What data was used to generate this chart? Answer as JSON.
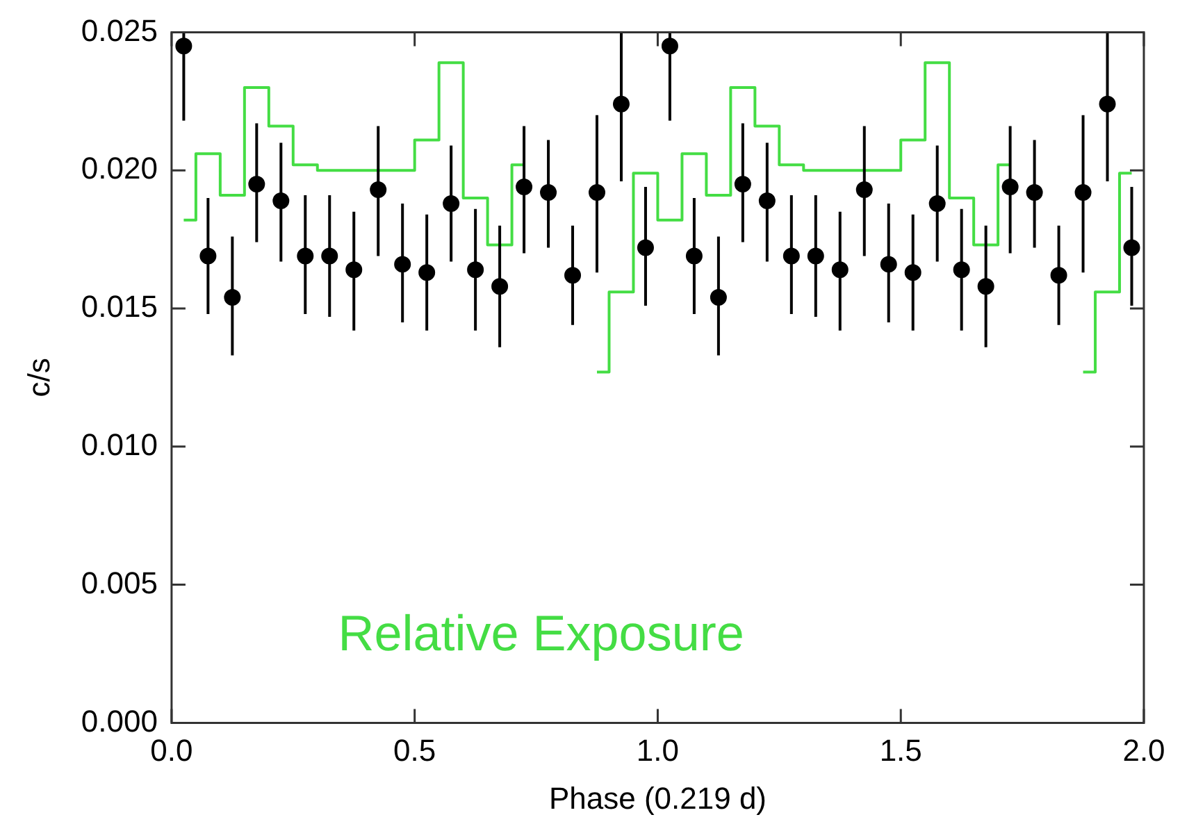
{
  "chart_data": {
    "type": "scatter",
    "xlabel": "Phase (0.219 d)",
    "ylabel": "c/s",
    "xlim": [
      0,
      2
    ],
    "ylim": [
      0,
      0.025
    ],
    "xticks": [
      {
        "value": 0,
        "label": "0.0"
      },
      {
        "value": 0.5,
        "label": "0.5"
      },
      {
        "value": 1,
        "label": "1.0"
      },
      {
        "value": 1.5,
        "label": "1.5"
      },
      {
        "value": 2,
        "label": "2.0"
      }
    ],
    "yticks": [
      {
        "value": 0,
        "label": "0.000"
      },
      {
        "value": 0.005,
        "label": "0.005"
      },
      {
        "value": 0.01,
        "label": "0.010"
      },
      {
        "value": 0.015,
        "label": "0.015"
      },
      {
        "value": 0.02,
        "label": "0.020"
      },
      {
        "value": 0.025,
        "label": "0.025"
      }
    ],
    "grid": false,
    "legend": false,
    "series": [
      {
        "color": "#000000",
        "marker": "circle",
        "x": [
          0.025,
          0.075,
          0.125,
          0.175,
          0.225,
          0.275,
          0.325,
          0.375,
          0.425,
          0.475,
          0.525,
          0.575,
          0.625,
          0.675,
          0.725,
          0.775,
          0.825,
          0.875,
          0.925,
          0.975,
          1.025,
          1.075,
          1.125,
          1.175,
          1.225,
          1.275,
          1.325,
          1.375,
          1.425,
          1.475,
          1.525,
          1.575,
          1.625,
          1.675,
          1.725,
          1.775,
          1.825,
          1.875,
          1.925,
          1.975
        ],
        "values": [
          0.0245,
          0.0169,
          0.0154,
          0.0195,
          0.0189,
          0.0169,
          0.0169,
          0.0164,
          0.0193,
          0.0166,
          0.0163,
          0.0188,
          0.0164,
          0.0158,
          0.0194,
          0.0192,
          0.0162,
          0.0192,
          0.0224,
          0.0172,
          0.0245,
          0.0169,
          0.0154,
          0.0195,
          0.0189,
          0.0169,
          0.0169,
          0.0164,
          0.0193,
          0.0166,
          0.0163,
          0.0188,
          0.0164,
          0.0158,
          0.0194,
          0.0192,
          0.0162,
          0.0192,
          0.0224,
          0.0172
        ],
        "errors": [
          [
            0.0218,
            0.025
          ],
          [
            0.0148,
            0.019
          ],
          [
            0.0133,
            0.0176
          ],
          [
            0.0174,
            0.0217
          ],
          [
            0.0167,
            0.021
          ],
          [
            0.0148,
            0.0191
          ],
          [
            0.0147,
            0.0191
          ],
          [
            0.0142,
            0.0185
          ],
          [
            0.0169,
            0.0216
          ],
          [
            0.0145,
            0.0188
          ],
          [
            0.0142,
            0.0184
          ],
          [
            0.0167,
            0.0209
          ],
          [
            0.0142,
            0.0186
          ],
          [
            0.0136,
            0.018
          ],
          [
            0.017,
            0.0216
          ],
          [
            0.0172,
            0.0211
          ],
          [
            0.0144,
            0.018
          ],
          [
            0.0163,
            0.022
          ],
          [
            0.0196,
            0.025
          ],
          [
            0.0151,
            0.0194
          ],
          [
            0.0218,
            0.025
          ],
          [
            0.0148,
            0.019
          ],
          [
            0.0133,
            0.0176
          ],
          [
            0.0174,
            0.0217
          ],
          [
            0.0167,
            0.021
          ],
          [
            0.0148,
            0.0191
          ],
          [
            0.0147,
            0.0191
          ],
          [
            0.0142,
            0.0185
          ],
          [
            0.0169,
            0.0216
          ],
          [
            0.0145,
            0.0188
          ],
          [
            0.0142,
            0.0184
          ],
          [
            0.0167,
            0.0209
          ],
          [
            0.0142,
            0.0186
          ],
          [
            0.0136,
            0.018
          ],
          [
            0.017,
            0.0216
          ],
          [
            0.0172,
            0.0211
          ],
          [
            0.0144,
            0.018
          ],
          [
            0.0163,
            0.022
          ],
          [
            0.0196,
            0.025
          ],
          [
            0.0151,
            0.0194
          ]
        ]
      },
      {
        "type": "step",
        "name": "Relative Exposure",
        "color": "#44dd44",
        "x": [
          0.025,
          0.075,
          0.125,
          0.175,
          0.225,
          0.275,
          0.325,
          0.375,
          0.425,
          0.475,
          0.525,
          0.575,
          0.625,
          0.675,
          0.725,
          0.775,
          0.825,
          0.875,
          0.925,
          0.975,
          1.025,
          1.075,
          1.125,
          1.175,
          1.225,
          1.275,
          1.325,
          1.375,
          1.425,
          1.475,
          1.525,
          1.575,
          1.625,
          1.675,
          1.725,
          1.775,
          1.825,
          1.875,
          1.925,
          1.975
        ],
        "values": [
          0.0182,
          0.0206,
          0.0191,
          0.023,
          0.0216,
          0.0202,
          0.02,
          0.02,
          0.02,
          0.02,
          0.0211,
          0.0239,
          0.019,
          0.0173,
          0.0202,
          null,
          null,
          0.0127,
          0.0156,
          0.0199,
          0.0182,
          0.0206,
          0.0191,
          0.023,
          0.0216,
          0.0202,
          0.02,
          0.02,
          0.02,
          0.02,
          0.0211,
          0.0239,
          0.019,
          0.0173,
          0.0202,
          null,
          null,
          0.0127,
          0.0156,
          0.0199
        ]
      }
    ]
  }
}
